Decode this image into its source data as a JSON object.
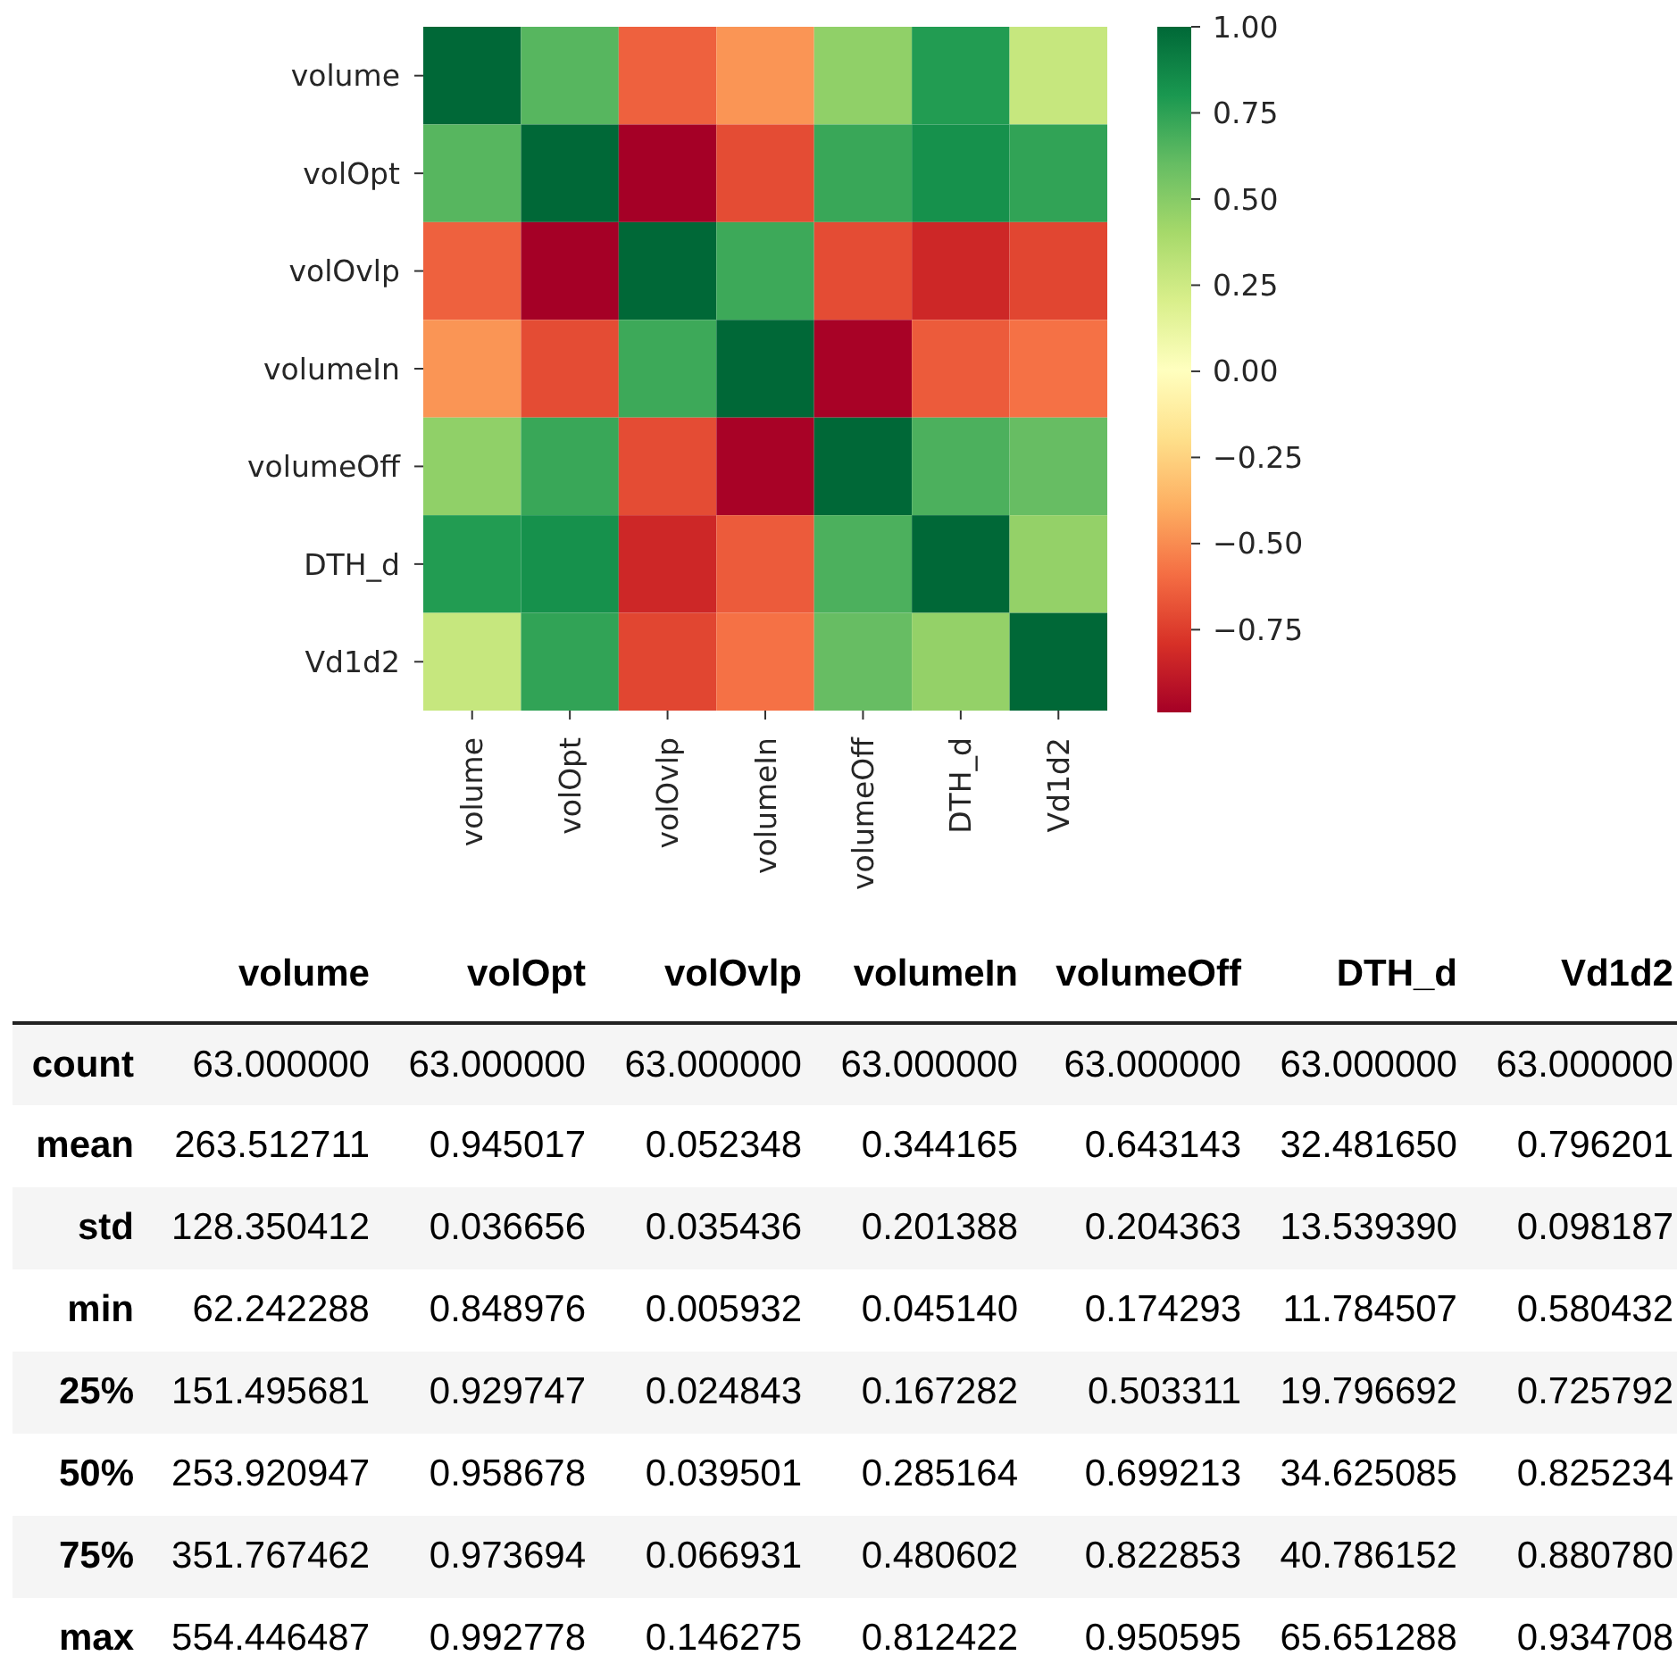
{
  "chart_data": [
    {
      "type": "heatmap",
      "categories": [
        "volume",
        "volOpt",
        "volOvlp",
        "volumeIn",
        "volumeOff",
        "DTH_d",
        "Vd1d2"
      ],
      "y_categories": [
        "volume",
        "volOpt",
        "volOvlp",
        "volumeIn",
        "volumeOff",
        "DTH_d",
        "Vd1d2"
      ],
      "cells": [
        [
          1,
          0.64,
          -0.63,
          -0.47,
          0.47,
          0.78,
          0.28
        ],
        [
          0.64,
          1,
          -0.99,
          -0.7,
          0.72,
          0.83,
          0.74
        ],
        [
          -0.63,
          -0.99,
          1,
          0.71,
          -0.7,
          -0.83,
          -0.72
        ],
        [
          -0.47,
          -0.7,
          0.71,
          1,
          -0.98,
          -0.65,
          -0.58
        ],
        [
          0.47,
          0.72,
          -0.7,
          -0.98,
          1,
          0.67,
          0.6
        ],
        [
          0.78,
          0.83,
          -0.83,
          -0.65,
          0.67,
          1,
          0.46
        ],
        [
          0.28,
          0.74,
          -0.72,
          -0.58,
          0.6,
          0.46,
          1
        ]
      ],
      "clim": [
        -0.99,
        1.0
      ],
      "cticks": [
        {
          "value": -0.75,
          "label": "−0.75"
        },
        {
          "value": -0.5,
          "label": "−0.50"
        },
        {
          "value": -0.25,
          "label": "−0.25"
        },
        {
          "value": 0,
          "label": "0.00"
        },
        {
          "value": 0.25,
          "label": "0.25"
        },
        {
          "value": 0.5,
          "label": "0.50"
        },
        {
          "value": 0.75,
          "label": "0.75"
        },
        {
          "value": 1.0,
          "label": "1.00"
        }
      ]
    },
    {
      "type": "other",
      "categories": [
        "volume",
        "volOpt",
        "volOvlp",
        "volumeIn",
        "volumeOff",
        "DTH_d",
        "Vd1d2"
      ],
      "y_categories": [
        "count",
        "mean",
        "std",
        "min",
        "25%",
        "50%",
        "75%",
        "max"
      ],
      "cell_labels": [
        [
          "63.000000",
          "63.000000",
          "63.000000",
          "63.000000",
          "63.000000",
          "63.000000",
          "63.000000"
        ],
        [
          "263.512711",
          "0.945017",
          "0.052348",
          "0.344165",
          "0.643143",
          "32.481650",
          "0.796201"
        ],
        [
          "128.350412",
          "0.036656",
          "0.035436",
          "0.201388",
          "0.204363",
          "13.539390",
          "0.098187"
        ],
        [
          "62.242288",
          "0.848976",
          "0.005932",
          "0.045140",
          "0.174293",
          "11.784507",
          "0.580432"
        ],
        [
          "151.495681",
          "0.929747",
          "0.024843",
          "0.167282",
          "0.503311",
          "19.796692",
          "0.725792"
        ],
        [
          "253.920947",
          "0.958678",
          "0.039501",
          "0.285164",
          "0.699213",
          "34.625085",
          "0.825234"
        ],
        [
          "351.767462",
          "0.973694",
          "0.066931",
          "0.480602",
          "0.822853",
          "40.786152",
          "0.880780"
        ],
        [
          "554.446487",
          "0.992778",
          "0.146275",
          "0.812422",
          "0.950595",
          "65.651288",
          "0.934708"
        ]
      ]
    }
  ]
}
